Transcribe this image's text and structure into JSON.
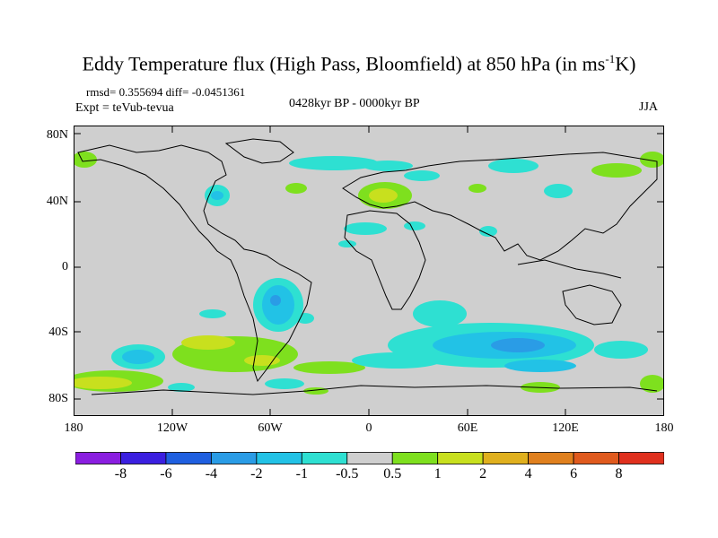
{
  "title": {
    "main": "Eddy Temperature flux (High Pass, Bloomfield) at 850 hPa (in ms",
    "sup": "-1",
    "tail": "K)"
  },
  "stats": {
    "rmsd": "rmsd= 0.355694 diff= -0.0451361",
    "expt": "Expt = teVub-tevua",
    "period": "0428kyr BP - 0000kyr BP",
    "season": "JJA"
  },
  "axes": {
    "lat_labels": [
      "80N",
      "40N",
      "0",
      "40S",
      "80S"
    ],
    "lon_labels": [
      "180",
      "120W",
      "60W",
      "0",
      "60E",
      "120E",
      "180"
    ]
  },
  "colorbar": {
    "labels": [
      "-8",
      "-6",
      "-4",
      "-2",
      "-1",
      "-0.5",
      "0.5",
      "1",
      "2",
      "4",
      "6",
      "8"
    ],
    "colors": [
      "#8a1ee0",
      "#3b1fe0",
      "#1f5fe0",
      "#2a9ce6",
      "#22c2e6",
      "#2ee0d2",
      "#cfcfcf",
      "#7ee01e",
      "#c8e01e",
      "#e0b01e",
      "#e0801e",
      "#e05a1e",
      "#e0301e"
    ]
  },
  "map": {
    "background": "#cfcfcf"
  }
}
